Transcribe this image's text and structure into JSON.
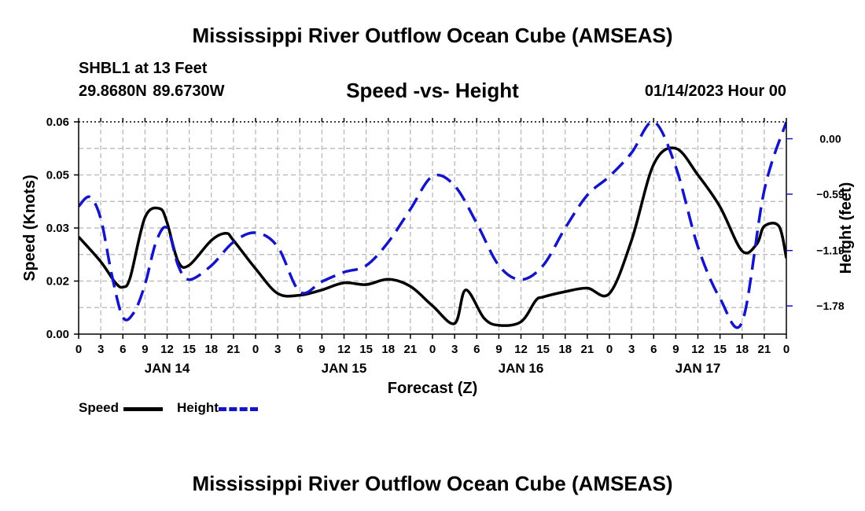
{
  "page": {
    "title": "Mississippi River Outflow Ocean Cube (AMSEAS)",
    "station": "SHBL1 at 13 Feet",
    "coords": "29.8680N  89.6730W",
    "subtitle": "Speed -vs- Height",
    "datetime": "01/14/2023 Hour 00",
    "footer_title": "Mississippi River Outflow Ocean Cube (AMSEAS)"
  },
  "legend": {
    "speed_label": "Speed",
    "height_label": "Height"
  },
  "colors": {
    "speed": "#000000",
    "height": "#1515c8",
    "grid": "#b4b4b4",
    "height_axis": "#1515c8"
  },
  "chart_data": {
    "type": "line",
    "title": "Speed -vs- Height",
    "xlabel": "Forecast (Z)",
    "ylabel": "Speed (Knots)",
    "y2label": "Height (feet)",
    "x_hours_range": [
      0,
      96
    ],
    "x_tick_step_hours": 3,
    "x_tick_labels": [
      "0",
      "3",
      "6",
      "9",
      "12",
      "15",
      "18",
      "21",
      "0",
      "3",
      "6",
      "9",
      "12",
      "15",
      "18",
      "21",
      "0",
      "3",
      "6",
      "9",
      "12",
      "15",
      "18",
      "21",
      "0",
      "3",
      "6",
      "9",
      "12",
      "15",
      "18",
      "21",
      "0"
    ],
    "day_labels": [
      {
        "label": "JAN 14",
        "hour": 12
      },
      {
        "label": "JAN 15",
        "hour": 36
      },
      {
        "label": "JAN 16",
        "hour": 60
      },
      {
        "label": "JAN 17",
        "hour": 84
      }
    ],
    "ylim": [
      0,
      0.06
    ],
    "y_tick_labels": [
      "0.00",
      "0.02",
      "0.03",
      "0.05",
      "0.06"
    ],
    "y2lim": [
      -2.08,
      0.18
    ],
    "y2_tick_values": [
      -1.78,
      -1.19,
      -0.59,
      0.0
    ],
    "y2_tick_labels": [
      "−1.78",
      "−1.19",
      "−0.59",
      "0.00"
    ],
    "grid": true,
    "series": [
      {
        "name": "Speed",
        "axis": "left",
        "style": "solid",
        "hours": [
          0,
          3,
          5,
          6,
          7,
          9,
          11,
          12,
          13.5,
          15,
          18,
          20,
          21,
          24,
          27,
          30,
          33,
          36,
          39,
          42,
          45,
          48,
          51,
          52.5,
          55,
          57,
          60,
          62,
          63,
          66,
          69,
          72,
          75,
          78,
          81,
          84,
          87,
          90,
          92,
          93,
          95,
          96
        ],
        "values": [
          0.0275,
          0.0205,
          0.0145,
          0.0133,
          0.016,
          0.033,
          0.0355,
          0.0315,
          0.0205,
          0.0195,
          0.0265,
          0.0285,
          0.0265,
          0.0185,
          0.0115,
          0.011,
          0.0125,
          0.0145,
          0.014,
          0.0155,
          0.0135,
          0.008,
          0.003,
          0.0125,
          0.0045,
          0.0025,
          0.0035,
          0.0095,
          0.0105,
          0.012,
          0.013,
          0.0115,
          0.0265,
          0.048,
          0.0525,
          0.045,
          0.036,
          0.0235,
          0.0255,
          0.0305,
          0.0305,
          0.0215
        ]
      },
      {
        "name": "Height",
        "axis": "right",
        "style": "dashed",
        "hours": [
          0,
          1.5,
          3,
          4.5,
          6,
          7.5,
          9,
          10.5,
          12,
          13.5,
          15,
          18,
          21,
          24,
          27,
          30,
          33,
          36,
          39,
          42,
          45,
          48,
          51,
          54,
          57,
          60,
          63,
          66,
          69,
          72,
          75,
          78,
          81,
          84,
          87,
          90,
          93,
          96
        ],
        "values": [
          -0.72,
          -0.62,
          -0.85,
          -1.45,
          -1.9,
          -1.85,
          -1.55,
          -1.1,
          -0.95,
          -1.35,
          -1.5,
          -1.35,
          -1.1,
          -1.0,
          -1.15,
          -1.63,
          -1.52,
          -1.42,
          -1.35,
          -1.1,
          -0.75,
          -0.4,
          -0.5,
          -0.9,
          -1.35,
          -1.5,
          -1.35,
          -0.95,
          -0.6,
          -0.4,
          -0.15,
          0.18,
          -0.3,
          -1.15,
          -1.7,
          -1.95,
          -0.55,
          0.18
        ]
      }
    ]
  }
}
